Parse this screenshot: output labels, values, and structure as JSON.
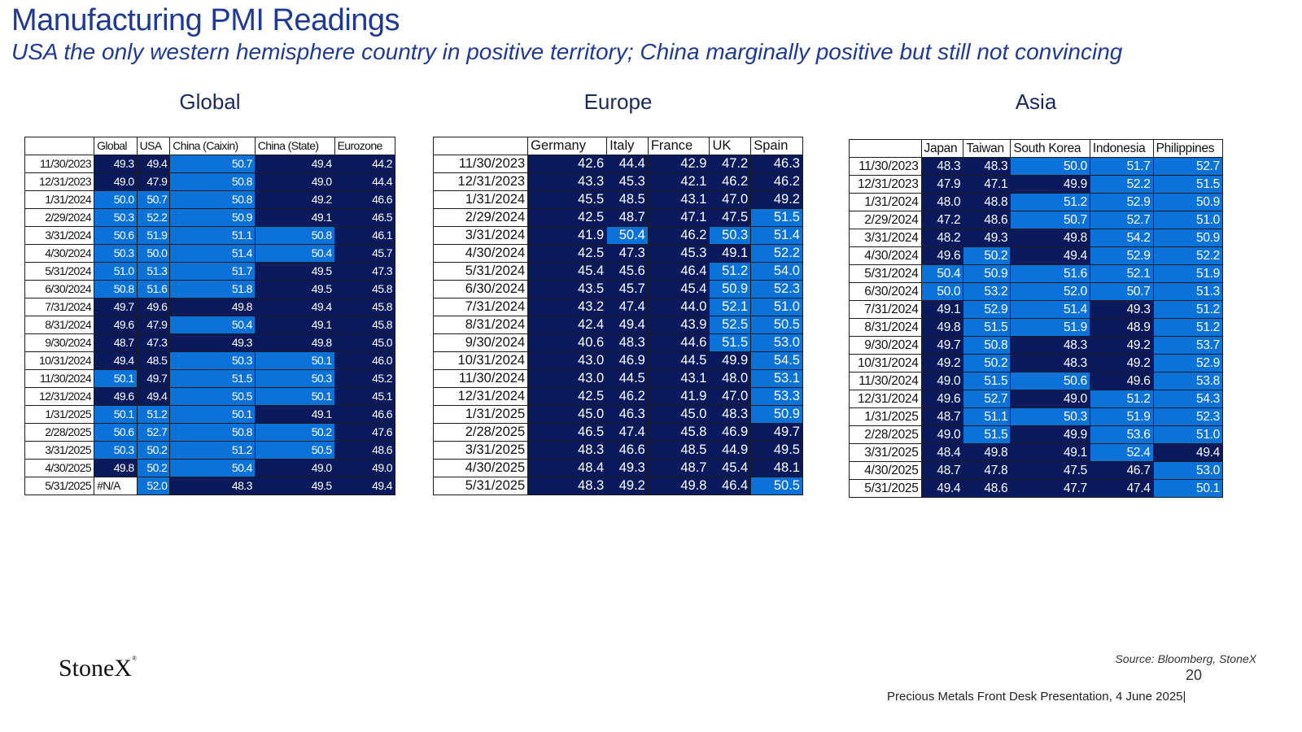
{
  "header": {
    "title": "Manufacturing PMI Readings",
    "subtitle": "USA the only western hemisphere country in positive territory; China marginally positive but still not convincing"
  },
  "colors": {
    "dark": "#0a1a5c",
    "bright": "#0a72d9",
    "threshold": 50
  },
  "tables": [
    {
      "id": "global",
      "heading": "Global",
      "columns": [
        "Global",
        "USA",
        "China (Caixin)",
        "China (State)",
        "Eurozone"
      ],
      "rows": [
        {
          "date": "11/30/2023",
          "values": [
            "49.3",
            "49.4",
            "50.7",
            "49.4",
            "44.2"
          ]
        },
        {
          "date": "12/31/2023",
          "values": [
            "49.0",
            "47.9",
            "50.8",
            "49.0",
            "44.4"
          ]
        },
        {
          "date": "1/31/2024",
          "values": [
            "50.0",
            "50.7",
            "50.8",
            "49.2",
            "46.6"
          ]
        },
        {
          "date": "2/29/2024",
          "values": [
            "50.3",
            "52.2",
            "50.9",
            "49.1",
            "46.5"
          ]
        },
        {
          "date": "3/31/2024",
          "values": [
            "50.6",
            "51.9",
            "51.1",
            "50.8",
            "46.1"
          ]
        },
        {
          "date": "4/30/2024",
          "values": [
            "50.3",
            "50.0",
            "51.4",
            "50.4",
            "45.7"
          ]
        },
        {
          "date": "5/31/2024",
          "values": [
            "51.0",
            "51.3",
            "51.7",
            "49.5",
            "47.3"
          ]
        },
        {
          "date": "6/30/2024",
          "values": [
            "50.8",
            "51.6",
            "51.8",
            "49.5",
            "45.8"
          ]
        },
        {
          "date": "7/31/2024",
          "values": [
            "49.7",
            "49.6",
            "49.8",
            "49.4",
            "45.8"
          ]
        },
        {
          "date": "8/31/2024",
          "values": [
            "49.6",
            "47.9",
            "50.4",
            "49.1",
            "45.8"
          ]
        },
        {
          "date": "9/30/2024",
          "values": [
            "48.7",
            "47.3",
            "49.3",
            "49.8",
            "45.0"
          ]
        },
        {
          "date": "10/31/2024",
          "values": [
            "49.4",
            "48.5",
            "50.3",
            "50.1",
            "46.0"
          ]
        },
        {
          "date": "11/30/2024",
          "values": [
            "50.1",
            "49.7",
            "51.5",
            "50.3",
            "45.2"
          ]
        },
        {
          "date": "12/31/2024",
          "values": [
            "49.6",
            "49.4",
            "50.5",
            "50.1",
            "45.1"
          ]
        },
        {
          "date": "1/31/2025",
          "values": [
            "50.1",
            "51.2",
            "50.1",
            "49.1",
            "46.6"
          ]
        },
        {
          "date": "2/28/2025",
          "values": [
            "50.6",
            "52.7",
            "50.8",
            "50.2",
            "47.6"
          ]
        },
        {
          "date": "3/31/2025",
          "values": [
            "50.3",
            "50.2",
            "51.2",
            "50.5",
            "48.6"
          ]
        },
        {
          "date": "4/30/2025",
          "values": [
            "49.8",
            "50.2",
            "50.4",
            "49.0",
            "49.0"
          ]
        },
        {
          "date": "5/31/2025",
          "values": [
            "#N/A",
            "52.0",
            "48.3",
            "49.5",
            "49.4"
          ]
        }
      ]
    },
    {
      "id": "europe",
      "heading": "Europe",
      "columns": [
        "Germany",
        "Italy",
        "France",
        "UK",
        "Spain"
      ],
      "rows": [
        {
          "date": "11/30/2023",
          "values": [
            "42.6",
            "44.4",
            "42.9",
            "47.2",
            "46.3"
          ]
        },
        {
          "date": "12/31/2023",
          "values": [
            "43.3",
            "45.3",
            "42.1",
            "46.2",
            "46.2"
          ]
        },
        {
          "date": "1/31/2024",
          "values": [
            "45.5",
            "48.5",
            "43.1",
            "47.0",
            "49.2"
          ]
        },
        {
          "date": "2/29/2024",
          "values": [
            "42.5",
            "48.7",
            "47.1",
            "47.5",
            "51.5"
          ]
        },
        {
          "date": "3/31/2024",
          "values": [
            "41.9",
            "50.4",
            "46.2",
            "50.3",
            "51.4"
          ]
        },
        {
          "date": "4/30/2024",
          "values": [
            "42.5",
            "47.3",
            "45.3",
            "49.1",
            "52.2"
          ]
        },
        {
          "date": "5/31/2024",
          "values": [
            "45.4",
            "45.6",
            "46.4",
            "51.2",
            "54.0"
          ]
        },
        {
          "date": "6/30/2024",
          "values": [
            "43.5",
            "45.7",
            "45.4",
            "50.9",
            "52.3"
          ]
        },
        {
          "date": "7/31/2024",
          "values": [
            "43.2",
            "47.4",
            "44.0",
            "52.1",
            "51.0"
          ]
        },
        {
          "date": "8/31/2024",
          "values": [
            "42.4",
            "49.4",
            "43.9",
            "52.5",
            "50.5"
          ]
        },
        {
          "date": "9/30/2024",
          "values": [
            "40.6",
            "48.3",
            "44.6",
            "51.5",
            "53.0"
          ]
        },
        {
          "date": "10/31/2024",
          "values": [
            "43.0",
            "46.9",
            "44.5",
            "49.9",
            "54.5"
          ]
        },
        {
          "date": "11/30/2024",
          "values": [
            "43.0",
            "44.5",
            "43.1",
            "48.0",
            "53.1"
          ]
        },
        {
          "date": "12/31/2024",
          "values": [
            "42.5",
            "46.2",
            "41.9",
            "47.0",
            "53.3"
          ]
        },
        {
          "date": "1/31/2025",
          "values": [
            "45.0",
            "46.3",
            "45.0",
            "48.3",
            "50.9"
          ]
        },
        {
          "date": "2/28/2025",
          "values": [
            "46.5",
            "47.4",
            "45.8",
            "46.9",
            "49.7"
          ]
        },
        {
          "date": "3/31/2025",
          "values": [
            "48.3",
            "46.6",
            "48.5",
            "44.9",
            "49.5"
          ]
        },
        {
          "date": "4/30/2025",
          "values": [
            "48.4",
            "49.3",
            "48.7",
            "45.4",
            "48.1"
          ]
        },
        {
          "date": "5/31/2025",
          "values": [
            "48.3",
            "49.2",
            "49.8",
            "46.4",
            "50.5"
          ]
        }
      ]
    },
    {
      "id": "asia",
      "heading": "Asia",
      "columns": [
        "Japan",
        "Taiwan",
        "South Korea",
        "Indonesia",
        "Philippines"
      ],
      "rows": [
        {
          "date": "11/30/2023",
          "values": [
            "48.3",
            "48.3",
            "50.0",
            "51.7",
            "52.7"
          ]
        },
        {
          "date": "12/31/2023",
          "values": [
            "47.9",
            "47.1",
            "49.9",
            "52.2",
            "51.5"
          ]
        },
        {
          "date": "1/31/2024",
          "values": [
            "48.0",
            "48.8",
            "51.2",
            "52.9",
            "50.9"
          ]
        },
        {
          "date": "2/29/2024",
          "values": [
            "47.2",
            "48.6",
            "50.7",
            "52.7",
            "51.0"
          ]
        },
        {
          "date": "3/31/2024",
          "values": [
            "48.2",
            "49.3",
            "49.8",
            "54.2",
            "50.9"
          ]
        },
        {
          "date": "4/30/2024",
          "values": [
            "49.6",
            "50.2",
            "49.4",
            "52.9",
            "52.2"
          ]
        },
        {
          "date": "5/31/2024",
          "values": [
            "50.4",
            "50.9",
            "51.6",
            "52.1",
            "51.9"
          ]
        },
        {
          "date": "6/30/2024",
          "values": [
            "50.0",
            "53.2",
            "52.0",
            "50.7",
            "51.3"
          ]
        },
        {
          "date": "7/31/2024",
          "values": [
            "49.1",
            "52.9",
            "51.4",
            "49.3",
            "51.2"
          ]
        },
        {
          "date": "8/31/2024",
          "values": [
            "49.8",
            "51.5",
            "51.9",
            "48.9",
            "51.2"
          ]
        },
        {
          "date": "9/30/2024",
          "values": [
            "49.7",
            "50.8",
            "48.3",
            "49.2",
            "53.7"
          ]
        },
        {
          "date": "10/31/2024",
          "values": [
            "49.2",
            "50.2",
            "48.3",
            "49.2",
            "52.9"
          ]
        },
        {
          "date": "11/30/2024",
          "values": [
            "49.0",
            "51.5",
            "50.6",
            "49.6",
            "53.8"
          ]
        },
        {
          "date": "12/31/2024",
          "values": [
            "49.6",
            "52.7",
            "49.0",
            "51.2",
            "54.3"
          ]
        },
        {
          "date": "1/31/2025",
          "values": [
            "48.7",
            "51.1",
            "50.3",
            "51.9",
            "52.3"
          ]
        },
        {
          "date": "2/28/2025",
          "values": [
            "49.0",
            "51.5",
            "49.9",
            "53.6",
            "51.0"
          ]
        },
        {
          "date": "3/31/2025",
          "values": [
            "48.4",
            "49.8",
            "49.1",
            "52.4",
            "49.4"
          ]
        },
        {
          "date": "4/30/2025",
          "values": [
            "48.7",
            "47.8",
            "47.5",
            "46.7",
            "53.0"
          ]
        },
        {
          "date": "5/31/2025",
          "values": [
            "49.4",
            "48.6",
            "47.7",
            "47.4",
            "50.1"
          ]
        }
      ]
    }
  ],
  "footer": {
    "logo": "StoneX",
    "logo_mark": "®",
    "source": "Source: Bloomberg, StoneX",
    "page_number": "20",
    "presentation": "Precious Metals Front Desk Presentation, 4 June 2025|"
  }
}
